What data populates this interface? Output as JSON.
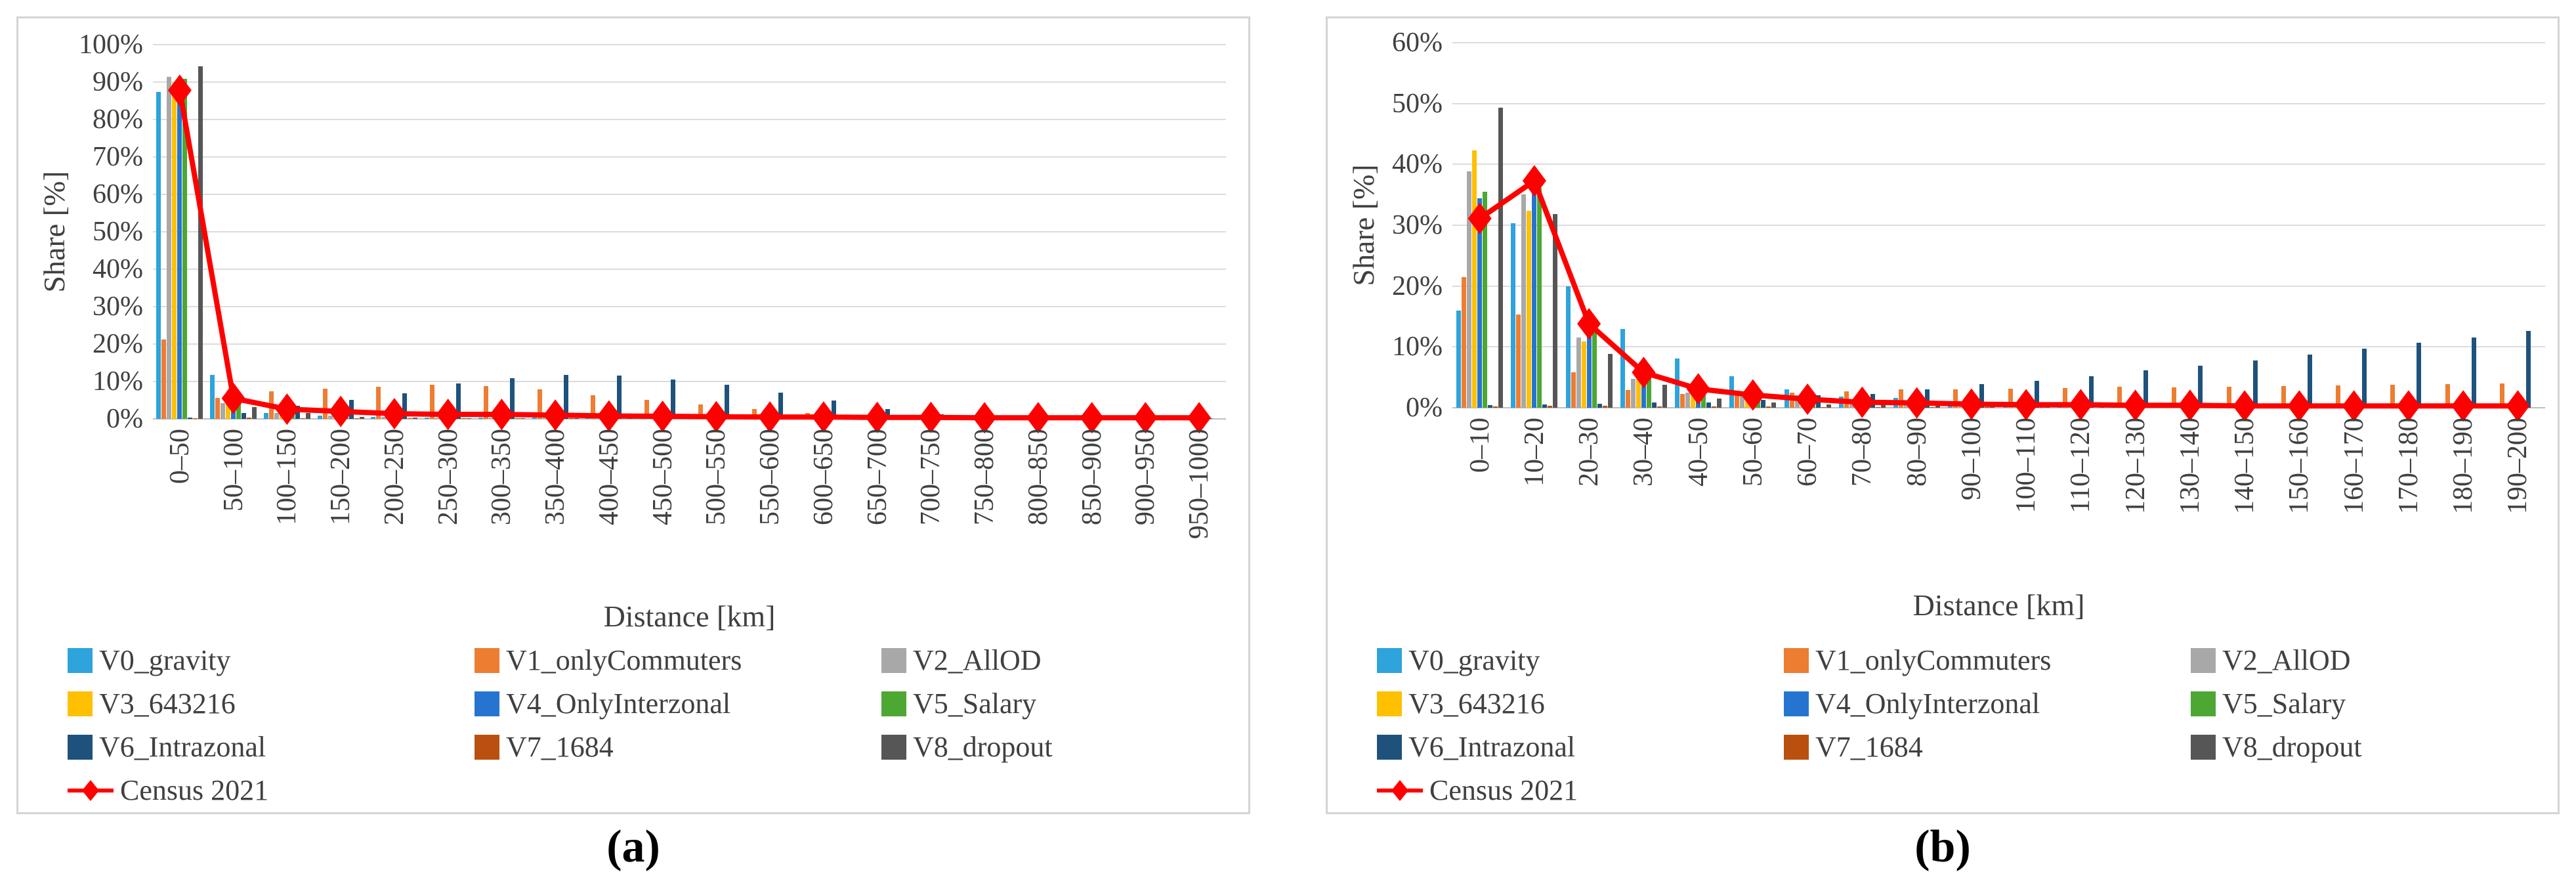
{
  "chart_data": [
    {
      "id": "a",
      "type": "bar",
      "caption": "(a)",
      "ylabel": "Share [%]",
      "xlabel": "Distance [km]",
      "ylim": [
        0,
        100
      ],
      "ytick_step": 10,
      "ytick_suffix": "%",
      "grid": true,
      "legend_position": "bottom",
      "categories": [
        "0–50",
        "50–100",
        "100–150",
        "150–200",
        "200–250",
        "250–300",
        "300–350",
        "350–400",
        "400–450",
        "450–500",
        "500–550",
        "550–600",
        "600–650",
        "650–700",
        "700–750",
        "750–800",
        "800–850",
        "850–900",
        "900–950",
        "950–1000"
      ],
      "series": [
        {
          "name": "V0_gravity",
          "color": "#2EA3DC",
          "values": [
            87.3,
            11.8,
            1.5,
            0.8,
            0.5,
            0.4,
            0.3,
            0.3,
            0.2,
            0.2,
            0.2,
            0.1,
            0.1,
            0.1,
            0.1,
            0,
            0,
            0,
            0,
            0
          ]
        },
        {
          "name": "V1_onlyCommuters",
          "color": "#ED7D31",
          "values": [
            21.3,
            5.7,
            7.4,
            8.1,
            8.6,
            9.1,
            8.7,
            7.9,
            6.4,
            5.1,
            3.9,
            2.6,
            1.6,
            0.8,
            0.4,
            0.2,
            0.1,
            0.1,
            0,
            0
          ]
        },
        {
          "name": "V2_AllOD",
          "color": "#A8A8A8",
          "values": [
            91.4,
            4.3,
            1.6,
            0.8,
            0.5,
            0.4,
            0.3,
            0.3,
            0.2,
            0.2,
            0.1,
            0.1,
            0.1,
            0,
            0,
            0,
            0,
            0,
            0,
            0
          ]
        },
        {
          "name": "V3_643216",
          "color": "#FFC000",
          "values": [
            89.8,
            4.6,
            1.9,
            0.9,
            0.5,
            0.4,
            0.3,
            0.3,
            0.2,
            0.2,
            0.1,
            0.1,
            0.1,
            0,
            0,
            0,
            0,
            0,
            0,
            0
          ]
        },
        {
          "name": "V4_OnlyInterzonal",
          "color": "#2575D0",
          "values": [
            87.9,
            4.5,
            1.2,
            0.7,
            0.4,
            0.3,
            0.3,
            0.2,
            0.2,
            0.1,
            0.1,
            0.1,
            0,
            0,
            0,
            0,
            0,
            0,
            0,
            0
          ]
        },
        {
          "name": "V5_Salary",
          "color": "#4CA733",
          "values": [
            90.9,
            4.9,
            1.0,
            0.6,
            0.4,
            0.3,
            0.2,
            0.2,
            0.2,
            0.1,
            0.1,
            0.1,
            0,
            0,
            0,
            0,
            0,
            0,
            0,
            0
          ]
        },
        {
          "name": "V6_Intrazonal",
          "color": "#1E527C",
          "values": [
            0.3,
            1.6,
            3.5,
            5.1,
            6.9,
            9.4,
            10.9,
            11.7,
            11.5,
            10.5,
            9.2,
            7.0,
            4.9,
            2.6,
            1.3,
            0.5,
            0.3,
            0.2,
            0.1,
            0.1
          ]
        },
        {
          "name": "V7_1684",
          "color": "#B9500F",
          "values": [
            0.2,
            0.3,
            0.2,
            0.1,
            0.1,
            0.1,
            0.1,
            0.1,
            0,
            0,
            0,
            0,
            0,
            0,
            0,
            0,
            0,
            0,
            0,
            0
          ]
        },
        {
          "name": "V8_dropout",
          "color": "#565656",
          "values": [
            94.2,
            3.2,
            1.5,
            0.5,
            0.3,
            0.2,
            0.2,
            0.1,
            0.1,
            0.1,
            0,
            0,
            0,
            0,
            0,
            0,
            0,
            0,
            0,
            0
          ]
        }
      ],
      "line_series": {
        "name": "Census 2021",
        "color": "#FF0000",
        "values": [
          87.8,
          5.5,
          2.6,
          2.0,
          1.4,
          1.2,
          1.2,
          1.0,
          0.8,
          0.7,
          0.6,
          0.5,
          0.5,
          0.4,
          0.4,
          0.3,
          0.3,
          0.3,
          0.3,
          0.3
        ]
      }
    },
    {
      "id": "b",
      "type": "bar",
      "caption": "(b)",
      "ylabel": "Share [%]",
      "xlabel": "Distance [km]",
      "ylim": [
        0,
        60
      ],
      "ytick_step": 10,
      "ytick_suffix": "%",
      "grid": true,
      "legend_position": "bottom",
      "categories": [
        "0–10",
        "10–20",
        "20–30",
        "30–40",
        "40–50",
        "50–60",
        "60–70",
        "70–80",
        "80–90",
        "90–100",
        "100–110",
        "110–120",
        "120–130",
        "130–140",
        "140–150",
        "150–160",
        "160–170",
        "170–180",
        "180–190",
        "190–200"
      ],
      "series": [
        {
          "name": "V0_gravity",
          "color": "#2EA3DC",
          "values": [
            16.0,
            30.3,
            20.0,
            12.9,
            8.1,
            5.2,
            3.0,
            1.8,
            1.6,
            0.9,
            0.6,
            0.4,
            0.3,
            0.3,
            0.2,
            0.2,
            0.1,
            0.1,
            0.1,
            0.1
          ]
        },
        {
          "name": "V1_onlyCommuters",
          "color": "#ED7D31",
          "values": [
            21.5,
            15.3,
            5.8,
            2.9,
            2.3,
            2.3,
            2.5,
            2.7,
            3.0,
            3.0,
            3.1,
            3.2,
            3.5,
            3.4,
            3.5,
            3.6,
            3.7,
            3.8,
            3.9,
            4.0
          ]
        },
        {
          "name": "V2_AllOD",
          "color": "#A8A8A8",
          "values": [
            38.9,
            35.1,
            11.6,
            4.7,
            2.5,
            2.7,
            2.0,
            1.0,
            0.8,
            0.6,
            0.5,
            0.4,
            0.4,
            0.3,
            0.3,
            0.2,
            0.2,
            0.2,
            0.1,
            0.1
          ]
        },
        {
          "name": "V3_643216",
          "color": "#FFC000",
          "values": [
            42.3,
            32.4,
            10.9,
            4.7,
            2.1,
            2.0,
            0.9,
            0.7,
            0.6,
            0.5,
            0.4,
            0.4,
            0.3,
            0.3,
            0.2,
            0.2,
            0.2,
            0.1,
            0.1,
            0.1
          ]
        },
        {
          "name": "V4_OnlyInterzonal",
          "color": "#2575D0",
          "values": [
            34.4,
            36.0,
            12.7,
            4.9,
            2.4,
            2.2,
            1.2,
            0.8,
            0.6,
            0.5,
            0.4,
            0.4,
            0.3,
            0.3,
            0.2,
            0.2,
            0.1,
            0.1,
            0.1,
            0.1
          ]
        },
        {
          "name": "V5_Salary",
          "color": "#4CA733",
          "values": [
            35.5,
            36.2,
            12.7,
            5.1,
            2.3,
            2.1,
            1.1,
            0.8,
            0.6,
            0.5,
            0.4,
            0.4,
            0.3,
            0.3,
            0.2,
            0.2,
            0.1,
            0.1,
            0.1,
            0.1
          ]
        },
        {
          "name": "V6_Intrazonal",
          "color": "#1E527C",
          "values": [
            0.4,
            0.5,
            0.7,
            0.9,
            0.9,
            1.3,
            2.0,
            2.3,
            3.0,
            3.9,
            4.4,
            5.2,
            6.1,
            6.9,
            7.8,
            8.7,
            9.7,
            10.7,
            11.5,
            12.6
          ]
        },
        {
          "name": "V7_1684",
          "color": "#B9500F",
          "values": [
            0.2,
            0.3,
            0.3,
            0.2,
            0.2,
            0.2,
            0.1,
            0.1,
            0.1,
            0.1,
            0.1,
            0,
            0,
            0,
            0,
            0,
            0,
            0,
            0,
            0
          ]
        },
        {
          "name": "V8_dropout",
          "color": "#565656",
          "values": [
            49.3,
            31.8,
            8.9,
            3.8,
            1.5,
            0.9,
            0.5,
            0.4,
            0.3,
            0.2,
            0.2,
            0.1,
            0.1,
            0.1,
            0.1,
            0.1,
            0,
            0,
            0,
            0
          ]
        }
      ],
      "line_series": {
        "name": "Census 2021",
        "color": "#FF0000",
        "values": [
          31.1,
          37.3,
          13.8,
          5.8,
          3.1,
          2.1,
          1.4,
          0.9,
          0.8,
          0.6,
          0.5,
          0.5,
          0.4,
          0.4,
          0.3,
          0.3,
          0.3,
          0.3,
          0.3,
          0.3
        ]
      }
    }
  ]
}
